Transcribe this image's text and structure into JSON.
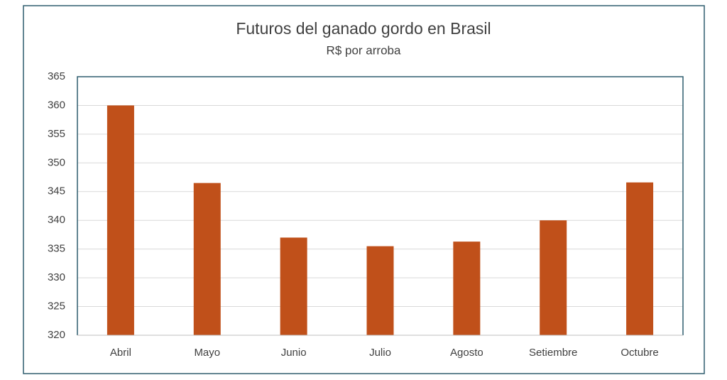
{
  "chart_data": {
    "type": "bar",
    "title": "Futuros del ganado gordo en Brasil",
    "subtitle": "R$ por arroba",
    "categories": [
      "Abril",
      "Mayo",
      "Junio",
      "Julio",
      "Agosto",
      "Setiembre",
      "Octubre"
    ],
    "values": [
      360,
      346.5,
      337,
      335.5,
      336.3,
      340,
      346.6
    ],
    "color": "#c0501a",
    "ylim": [
      320,
      365
    ],
    "yticks": [
      320,
      325,
      330,
      335,
      340,
      345,
      350,
      355,
      360,
      365
    ],
    "grid": true
  }
}
